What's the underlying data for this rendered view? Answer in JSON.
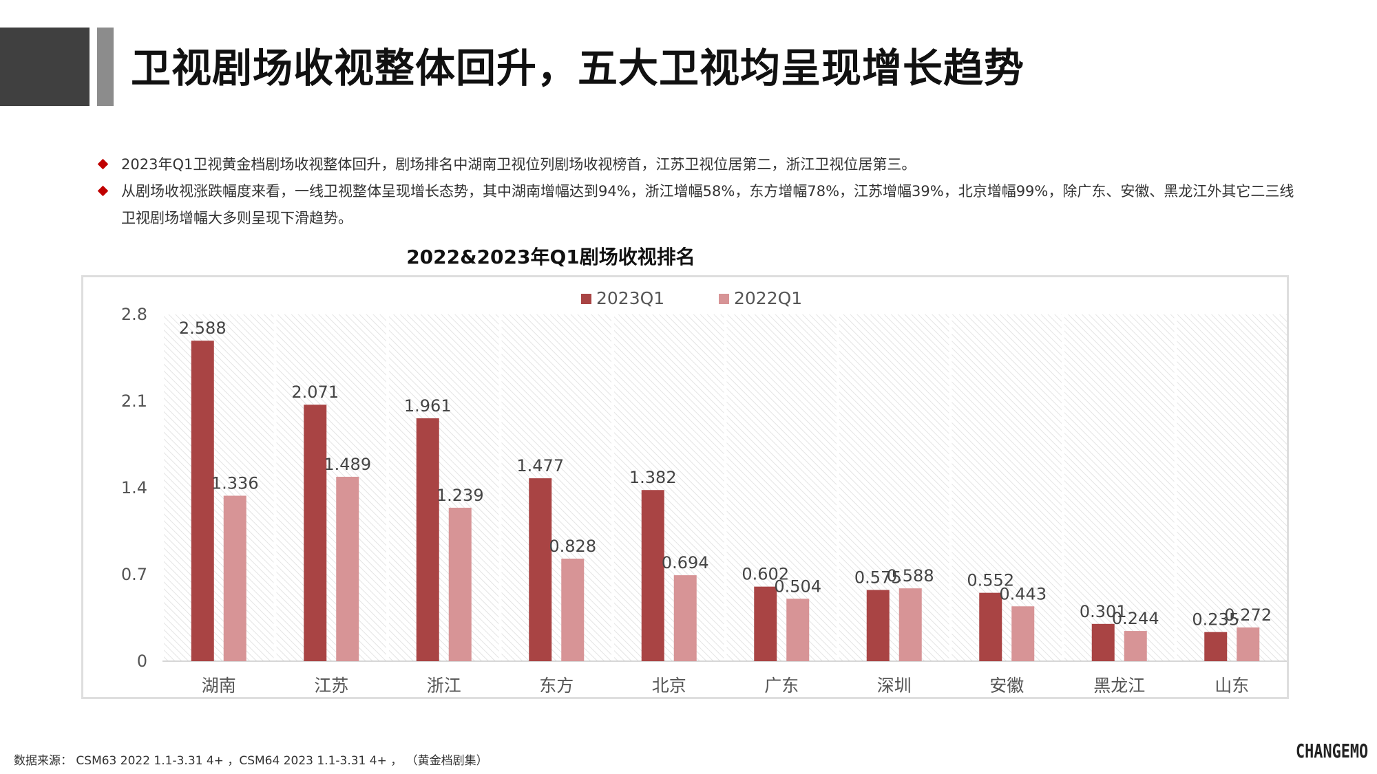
{
  "header": {
    "title": "卫视剧场收视整体回升，五大卫视均呈现增长趋势"
  },
  "bullets": [
    "2023年Q1卫视黄金档剧场收视整体回升，剧场排名中湖南卫视位列剧场收视榜首，江苏卫视位居第二，浙江卫视位居第三。",
    "从剧场收视涨跌幅度来看，一线卫视整体呈现增长态势，其中湖南增幅达到94%，浙江增幅58%，东方增幅78%，江苏增幅39%，北京增幅99%，除广东、安徽、黑龙江外其它二三线卫视剧场增幅大多则呈现下滑趋势。"
  ],
  "footer": {
    "source": "数据来源： CSM63 2022 1.1-3.31 4+ ，CSM64 2023 1.1-3.31 4+ ， （黄金档剧集）",
    "brand": "CHANGEMO"
  },
  "colors": {
    "series_2023": "#a94444",
    "series_2022": "#d79496",
    "bullet_marker": "#c00000"
  },
  "chart_data": {
    "type": "bar",
    "title": "2022&2023年Q1剧场收视排名",
    "categories": [
      "湖南",
      "江苏",
      "浙江",
      "东方",
      "北京",
      "广东",
      "深圳",
      "安徽",
      "黑龙江",
      "山东"
    ],
    "series": [
      {
        "name": "2023Q1",
        "values": [
          2.588,
          2.071,
          1.961,
          1.477,
          1.382,
          0.602,
          0.575,
          0.552,
          0.301,
          0.235
        ]
      },
      {
        "name": "2022Q1",
        "values": [
          1.336,
          1.489,
          1.239,
          0.828,
          0.694,
          0.504,
          0.588,
          0.443,
          0.244,
          0.272
        ]
      }
    ],
    "yticks": [
      "0",
      "0.7",
      "1.4",
      "2.1",
      "2.8"
    ],
    "ylim": [
      0,
      2.8
    ],
    "xlabel": "",
    "ylabel": "",
    "legend_position": "top-center",
    "grid": true,
    "data_labels": true
  }
}
